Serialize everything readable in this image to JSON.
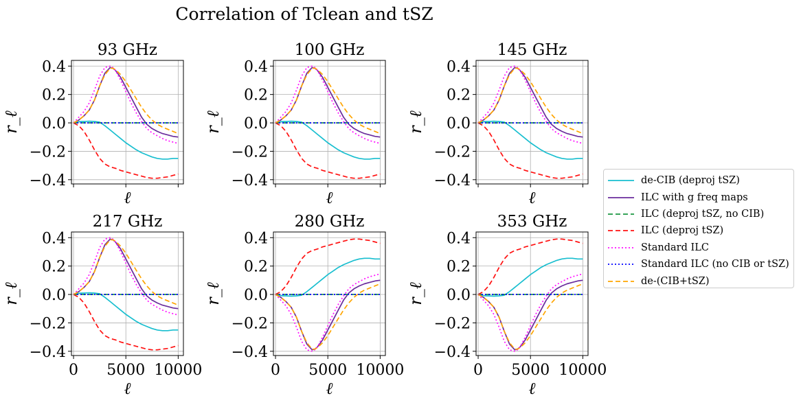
{
  "figure": {
    "suptitle": "Correlation of Tclean and tSZ"
  },
  "chart_data": [
    {
      "type": "line",
      "title": "93 GHz",
      "xlabel": "ℓ",
      "ylabel": "r_ℓ",
      "xlim": [
        -200,
        10500
      ],
      "ylim": [
        -0.43,
        0.44
      ],
      "yticks": [
        "0.4",
        "0.2",
        "0.0",
        "−0.2",
        "−0.4"
      ],
      "xticks": [
        "0",
        "5000",
        "10000"
      ],
      "grid": true,
      "pattern": "A"
    },
    {
      "type": "line",
      "title": "100 GHz",
      "xlabel": "ℓ",
      "ylabel": "r_ℓ",
      "xlim": [
        -200,
        10500
      ],
      "ylim": [
        -0.43,
        0.44
      ],
      "yticks": [
        "0.4",
        "0.2",
        "0.0",
        "−0.2",
        "−0.4"
      ],
      "xticks": [
        "0",
        "5000",
        "10000"
      ],
      "grid": true,
      "pattern": "A"
    },
    {
      "type": "line",
      "title": "145 GHz",
      "xlabel": "ℓ",
      "ylabel": "r_ℓ",
      "xlim": [
        -200,
        10500
      ],
      "ylim": [
        -0.43,
        0.44
      ],
      "yticks": [
        "0.4",
        "0.2",
        "0.0",
        "−0.2",
        "−0.4"
      ],
      "xticks": [
        "0",
        "5000",
        "10000"
      ],
      "grid": true,
      "pattern": "A"
    },
    {
      "type": "line",
      "title": "217 GHz",
      "xlabel": "ℓ",
      "ylabel": "r_ℓ",
      "xlim": [
        -200,
        10500
      ],
      "ylim": [
        -0.43,
        0.44
      ],
      "yticks": [
        "0.4",
        "0.2",
        "0.0",
        "−0.2",
        "−0.4"
      ],
      "xticks": [
        "0",
        "5000",
        "10000"
      ],
      "grid": true,
      "pattern": "A"
    },
    {
      "type": "line",
      "title": "280 GHz",
      "xlabel": "ℓ",
      "ylabel": "r_ℓ",
      "xlim": [
        -200,
        10500
      ],
      "ylim": [
        -0.43,
        0.44
      ],
      "yticks": [
        "0.4",
        "0.2",
        "0.0",
        "−0.2",
        "−0.4"
      ],
      "xticks": [
        "0",
        "5000",
        "10000"
      ],
      "grid": true,
      "pattern": "B"
    },
    {
      "type": "line",
      "title": "353 GHz",
      "xlabel": "ℓ",
      "ylabel": "r_ℓ",
      "xlim": [
        -200,
        10500
      ],
      "ylim": [
        -0.43,
        0.44
      ],
      "yticks": [
        "0.4",
        "0.2",
        "0.0",
        "−0.2",
        "−0.4"
      ],
      "xticks": [
        "0",
        "5000",
        "10000"
      ],
      "grid": true,
      "pattern": "B"
    }
  ],
  "x": [
    0,
    250,
    500,
    750,
    1000,
    1500,
    2000,
    2500,
    3000,
    3500,
    3750,
    4000,
    4500,
    5000,
    5500,
    6000,
    6500,
    7000,
    7500,
    8000,
    8500,
    9000,
    9500,
    10000
  ],
  "patterns": {
    "A": [
      {
        "name": "de-CIB (deproj tSZ)",
        "color": "#17becf",
        "dash": "solid",
        "values": [
          0,
          0.005,
          0.008,
          0.01,
          0.01,
          0.012,
          0.01,
          0.005,
          -0.02,
          -0.05,
          -0.065,
          -0.08,
          -0.11,
          -0.14,
          -0.165,
          -0.19,
          -0.21,
          -0.225,
          -0.24,
          -0.25,
          -0.255,
          -0.255,
          -0.25,
          -0.25
        ]
      },
      {
        "name": "ILC with g freq maps",
        "color": "#6a2c9c",
        "dash": "solid",
        "values": [
          0,
          0.01,
          0.02,
          0.035,
          0.05,
          0.09,
          0.16,
          0.26,
          0.35,
          0.39,
          0.385,
          0.37,
          0.32,
          0.25,
          0.18,
          0.11,
          0.04,
          -0.01,
          -0.04,
          -0.06,
          -0.075,
          -0.085,
          -0.095,
          -0.1
        ]
      },
      {
        "name": "ILC (deproj tSZ, no CIB)",
        "color": "#1a9641",
        "dash": "dashed",
        "values": [
          0,
          0,
          0,
          0,
          0,
          0,
          0,
          0,
          0,
          0,
          0,
          0,
          0,
          0,
          0,
          0,
          0,
          0,
          0,
          0,
          0,
          0,
          0,
          0
        ]
      },
      {
        "name": "ILC (deproj tSZ)",
        "color": "#ff1010",
        "dash": "dashed",
        "values": [
          0,
          -0.01,
          -0.02,
          -0.04,
          -0.06,
          -0.12,
          -0.19,
          -0.25,
          -0.29,
          -0.31,
          -0.315,
          -0.32,
          -0.335,
          -0.345,
          -0.355,
          -0.365,
          -0.375,
          -0.385,
          -0.39,
          -0.39,
          -0.385,
          -0.38,
          -0.37,
          -0.36
        ]
      },
      {
        "name": "Standard ILC",
        "color": "#ff10ff",
        "dash": "dotted",
        "values": [
          0,
          0.02,
          0.04,
          0.06,
          0.08,
          0.14,
          0.23,
          0.33,
          0.39,
          0.4,
          0.39,
          0.37,
          0.3,
          0.22,
          0.14,
          0.07,
          0.01,
          -0.04,
          -0.07,
          -0.09,
          -0.11,
          -0.125,
          -0.135,
          -0.145
        ]
      },
      {
        "name": "Standard ILC (no CIB or tSZ)",
        "color": "#0000ff",
        "dash": "dotted",
        "values": [
          0,
          0,
          0,
          0,
          0,
          0,
          0,
          0,
          0,
          0,
          0,
          0,
          0,
          0,
          0,
          0,
          0,
          0,
          0,
          0,
          0,
          0,
          0,
          0
        ]
      },
      {
        "name": "de-(CIB+tSZ)",
        "color": "#ffa500",
        "dash": "dashed",
        "values": [
          0,
          0.01,
          0.02,
          0.035,
          0.05,
          0.09,
          0.16,
          0.26,
          0.34,
          0.385,
          0.385,
          0.375,
          0.34,
          0.29,
          0.23,
          0.17,
          0.11,
          0.06,
          0.02,
          -0.01,
          -0.03,
          -0.045,
          -0.06,
          -0.075
        ]
      }
    ],
    "B": [
      {
        "name": "de-CIB (deproj tSZ)",
        "color": "#17becf",
        "dash": "solid",
        "values": [
          0,
          -0.005,
          -0.008,
          -0.01,
          -0.01,
          -0.012,
          -0.01,
          -0.005,
          0.02,
          0.05,
          0.065,
          0.08,
          0.11,
          0.14,
          0.165,
          0.19,
          0.21,
          0.225,
          0.24,
          0.25,
          0.255,
          0.255,
          0.25,
          0.25
        ]
      },
      {
        "name": "ILC with g freq maps",
        "color": "#6a2c9c",
        "dash": "solid",
        "values": [
          0,
          -0.01,
          -0.02,
          -0.035,
          -0.05,
          -0.09,
          -0.16,
          -0.26,
          -0.35,
          -0.39,
          -0.385,
          -0.37,
          -0.32,
          -0.25,
          -0.18,
          -0.11,
          -0.04,
          0.01,
          0.04,
          0.06,
          0.075,
          0.085,
          0.095,
          0.1
        ]
      },
      {
        "name": "ILC (deproj tSZ, no CIB)",
        "color": "#1a9641",
        "dash": "dashed",
        "values": [
          0,
          0,
          0,
          0,
          0,
          0,
          0,
          0,
          0,
          0,
          0,
          0,
          0,
          0,
          0,
          0,
          0,
          0,
          0,
          0,
          0,
          0,
          0,
          0
        ]
      },
      {
        "name": "ILC (deproj tSZ)",
        "color": "#ff1010",
        "dash": "dashed",
        "values": [
          0,
          0.01,
          0.02,
          0.04,
          0.06,
          0.12,
          0.19,
          0.25,
          0.29,
          0.31,
          0.315,
          0.32,
          0.335,
          0.345,
          0.355,
          0.365,
          0.375,
          0.385,
          0.39,
          0.39,
          0.385,
          0.38,
          0.37,
          0.36
        ]
      },
      {
        "name": "Standard ILC",
        "color": "#ff10ff",
        "dash": "dotted",
        "values": [
          0,
          -0.02,
          -0.04,
          -0.06,
          -0.08,
          -0.14,
          -0.23,
          -0.33,
          -0.39,
          -0.4,
          -0.39,
          -0.37,
          -0.3,
          -0.22,
          -0.14,
          -0.07,
          -0.01,
          0.04,
          0.07,
          0.09,
          0.11,
          0.125,
          0.135,
          0.145
        ]
      },
      {
        "name": "Standard ILC (no CIB or tSZ)",
        "color": "#0000ff",
        "dash": "dotted",
        "values": [
          0,
          0,
          0,
          0,
          0,
          0,
          0,
          0,
          0,
          0,
          0,
          0,
          0,
          0,
          0,
          0,
          0,
          0,
          0,
          0,
          0,
          0,
          0,
          0
        ]
      },
      {
        "name": "de-(CIB+tSZ)",
        "color": "#ffa500",
        "dash": "dashed",
        "values": [
          0,
          -0.01,
          -0.02,
          -0.035,
          -0.05,
          -0.09,
          -0.16,
          -0.26,
          -0.34,
          -0.385,
          -0.385,
          -0.375,
          -0.34,
          -0.29,
          -0.23,
          -0.17,
          -0.11,
          -0.06,
          -0.02,
          0.01,
          0.03,
          0.045,
          0.06,
          0.075
        ]
      }
    ]
  },
  "legend": {
    "items": [
      {
        "label": "de-CIB (deproj tSZ)",
        "color": "#17becf",
        "dash": "solid"
      },
      {
        "label": "ILC with g freq maps",
        "color": "#6a2c9c",
        "dash": "solid"
      },
      {
        "label": "ILC (deproj tSZ, no CIB)",
        "color": "#1a9641",
        "dash": "dashed"
      },
      {
        "label": "ILC (deproj tSZ)",
        "color": "#ff1010",
        "dash": "dashed"
      },
      {
        "label": "Standard ILC",
        "color": "#ff10ff",
        "dash": "dotted"
      },
      {
        "label": "Standard ILC (no CIB or tSZ)",
        "color": "#0000ff",
        "dash": "dotted"
      },
      {
        "label": "de-(CIB+tSZ)",
        "color": "#ffa500",
        "dash": "dashed"
      }
    ]
  }
}
